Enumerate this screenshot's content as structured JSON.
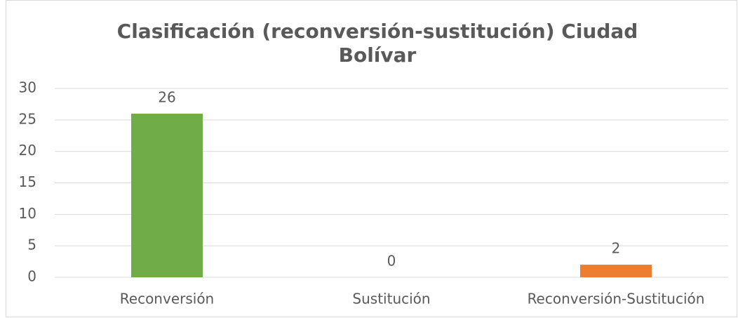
{
  "chart_data": {
    "type": "bar",
    "title": "Clasificación (reconversión-sustitución) Ciudad Bolívar",
    "categories": [
      "Reconversión",
      "Sustitución",
      "Reconversión-Sustitución"
    ],
    "values": [
      26,
      0,
      2
    ],
    "colors": [
      "#70ad47",
      null,
      "#ed7d31"
    ],
    "ylim": [
      0,
      30
    ],
    "yticks": [
      0,
      5,
      10,
      15,
      20,
      25,
      30
    ],
    "grid": true
  }
}
